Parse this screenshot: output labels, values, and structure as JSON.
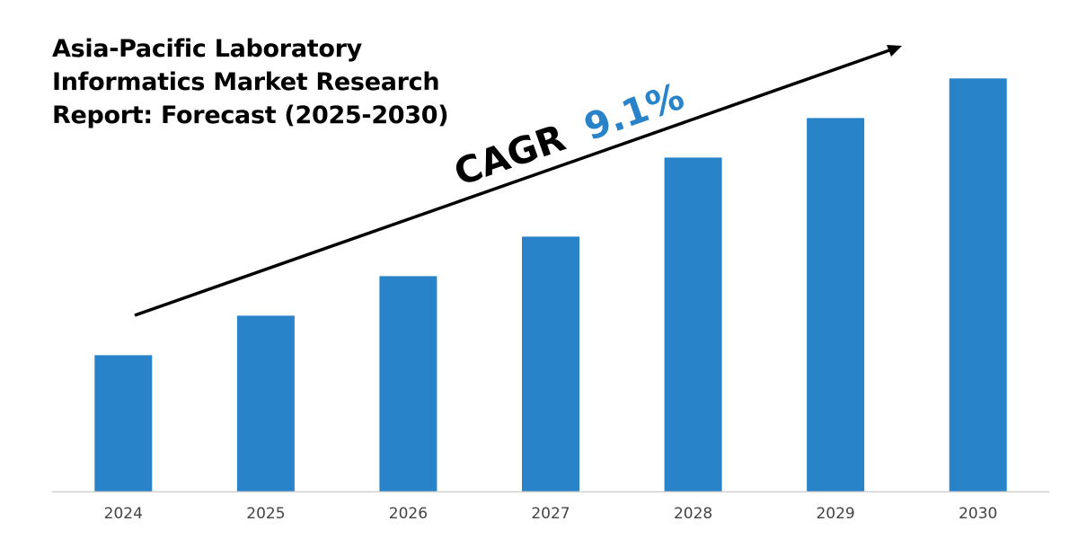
{
  "chart_data": {
    "type": "bar",
    "title_lines": [
      "Asia-Pacific Laboratory",
      "Informatics Market Research",
      "Report: Forecast (2025-2030)"
    ],
    "categories": [
      "2024",
      "2025",
      "2026",
      "2027",
      "2028",
      "2029",
      "2030"
    ],
    "values": [
      31,
      40,
      49,
      58,
      76,
      85,
      94
    ],
    "ylim": [
      0,
      100
    ],
    "xlabel": "",
    "ylabel": "",
    "grid": false,
    "legend": "none",
    "annotation": {
      "label": "CAGR",
      "value": "9.1%"
    },
    "colors": {
      "bar": "#2983C9",
      "cagr_value": "#2983C9",
      "axis": "#D0D0D0",
      "arrow": "#000000"
    }
  }
}
